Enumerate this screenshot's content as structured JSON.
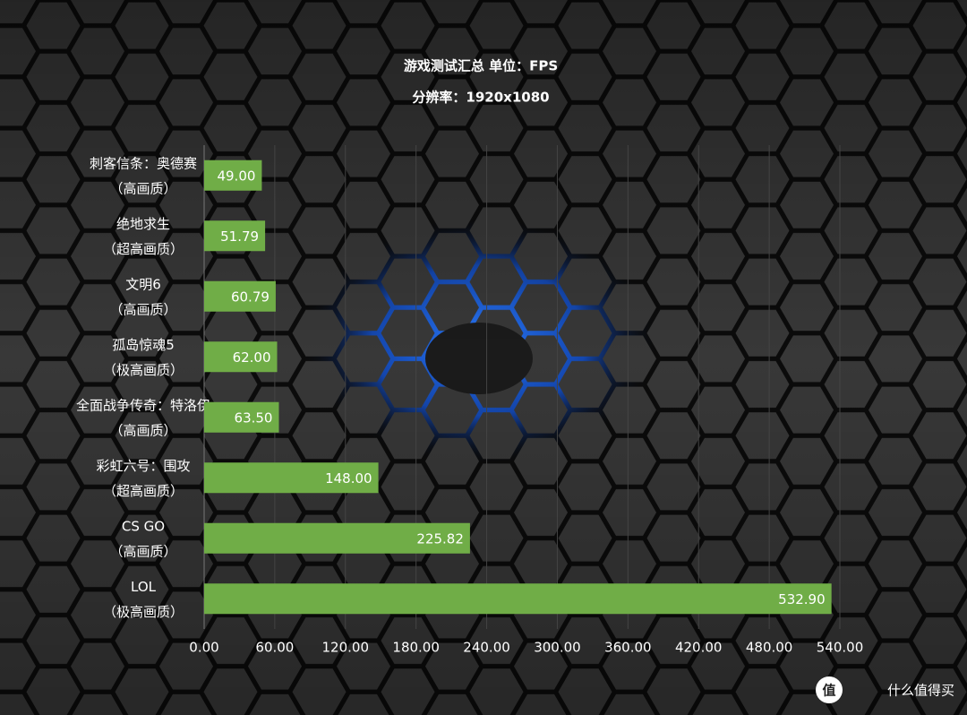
{
  "chart_data": {
    "type": "hbar",
    "title": "游戏测试汇总 单位：FPS",
    "subtitle": "分辨率：1920x1080",
    "categories": [
      [
        "刺客信条：奥德赛",
        "（高画质）"
      ],
      [
        "绝地求生",
        "（超高画质）"
      ],
      [
        "文明6",
        "（高画质）"
      ],
      [
        "孤岛惊魂5",
        "（极高画质）"
      ],
      [
        "全面战争传奇：特洛伊",
        "（高画质）"
      ],
      [
        "彩虹六号：围攻",
        "（超高画质）"
      ],
      [
        "CS GO",
        "（高画质）"
      ],
      [
        "LOL",
        "（极高画质）"
      ]
    ],
    "values": [
      49,
      51.79,
      60.79,
      62,
      63.5,
      148,
      225.82,
      532.9
    ],
    "value_labels": [
      "49.00",
      "51.79",
      "60.79",
      "62.00",
      "63.50",
      "148.00",
      "225.82",
      "532.90"
    ],
    "color": "#70ad47",
    "xlim": [
      0,
      540
    ],
    "xticks": [
      {
        "value": 0,
        "label": "0.00"
      },
      {
        "value": 60,
        "label": "60.00"
      },
      {
        "value": 120,
        "label": "120.00"
      },
      {
        "value": 180,
        "label": "180.00"
      },
      {
        "value": 240,
        "label": "240.00"
      },
      {
        "value": 300,
        "label": "300.00"
      },
      {
        "value": 360,
        "label": "360.00"
      },
      {
        "value": 420,
        "label": "420.00"
      },
      {
        "value": 480,
        "label": "480.00"
      },
      {
        "value": 540,
        "label": "540.00"
      }
    ],
    "grid": true,
    "watermark": {
      "icon": "值",
      "text": "什么值得买"
    }
  }
}
